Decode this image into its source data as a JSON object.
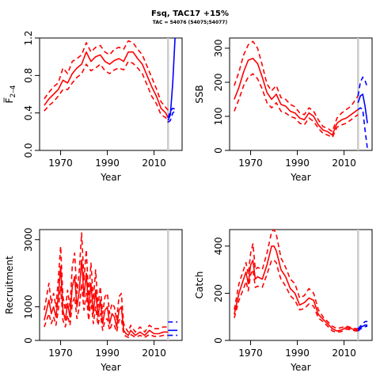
{
  "figure": {
    "title": "Fsq, TAC17 +15%",
    "subtitle": "TAC = 54076 (54075;54077)"
  },
  "chart_data": [
    {
      "id": "fbar",
      "type": "line",
      "xlabel": "Year",
      "ylabel": "F̅",
      "ylabel_sub": "2–4",
      "xlim": [
        1961,
        2022
      ],
      "ylim": [
        0,
        1.2
      ],
      "xticks": [
        1970,
        1990,
        2010
      ],
      "yticks": [
        0.0,
        0.4,
        0.8,
        1.2
      ],
      "ytick_labels": [
        "0.0",
        "0.4",
        "0.8",
        "1.2"
      ],
      "vline_year": 2016,
      "x": [
        1963,
        1965,
        1967,
        1969,
        1971,
        1973,
        1975,
        1977,
        1979,
        1981,
        1983,
        1985,
        1987,
        1989,
        1991,
        1993,
        1995,
        1997,
        1999,
        2001,
        2003,
        2005,
        2007,
        2009,
        2011,
        2013,
        2015,
        2016
      ],
      "series": [
        {
          "name": "estimate",
          "style": "solid",
          "color": "#ff0000",
          "values": [
            0.48,
            0.55,
            0.6,
            0.65,
            0.75,
            0.72,
            0.82,
            0.88,
            0.92,
            1.05,
            0.95,
            1.0,
            1.02,
            0.95,
            0.92,
            0.96,
            0.98,
            0.95,
            1.05,
            1.05,
            0.98,
            0.92,
            0.8,
            0.68,
            0.58,
            0.45,
            0.4,
            0.35
          ]
        },
        {
          "name": "upper",
          "style": "dashed",
          "color": "#ff0000",
          "values": [
            0.55,
            0.62,
            0.68,
            0.72,
            0.88,
            0.82,
            0.95,
            0.98,
            1.02,
            1.15,
            1.05,
            1.1,
            1.12,
            1.05,
            1.02,
            1.08,
            1.1,
            1.08,
            1.17,
            1.15,
            1.08,
            1.02,
            0.9,
            0.78,
            0.66,
            0.52,
            0.46,
            0.43
          ]
        },
        {
          "name": "lower",
          "style": "dashed",
          "color": "#ff0000",
          "values": [
            0.42,
            0.48,
            0.52,
            0.58,
            0.65,
            0.65,
            0.72,
            0.78,
            0.82,
            0.92,
            0.85,
            0.88,
            0.92,
            0.85,
            0.82,
            0.86,
            0.88,
            0.86,
            0.95,
            0.93,
            0.88,
            0.82,
            0.7,
            0.58,
            0.5,
            0.38,
            0.35,
            0.3
          ]
        }
      ],
      "forecast_x": [
        2016,
        2017,
        2018,
        2019
      ],
      "forecast": [
        {
          "name": "forecast",
          "style": "solid",
          "color": "#0000ff",
          "values": [
            0.32,
            0.38,
            0.72,
            1.2
          ]
        },
        {
          "name": "forecast-upper",
          "style": "dashed",
          "color": "#0000ff",
          "values": [
            0.35,
            0.42,
            0.45,
            0.44
          ]
        },
        {
          "name": "forecast-lower",
          "style": "dashed",
          "color": "#0000ff",
          "values": [
            0.3,
            0.32,
            0.4,
            0.42
          ]
        }
      ]
    },
    {
      "id": "ssb",
      "type": "line",
      "xlabel": "Year",
      "ylabel": "SSB",
      "xlim": [
        1961,
        2022
      ],
      "ylim": [
        0,
        330
      ],
      "xticks": [
        1970,
        1990,
        2010
      ],
      "yticks": [
        0,
        100,
        200,
        300
      ],
      "ytick_labels": [
        "0",
        "100",
        "200",
        "300"
      ],
      "vline_year": 2016,
      "x": [
        1963,
        1965,
        1967,
        1969,
        1971,
        1973,
        1975,
        1977,
        1979,
        1981,
        1983,
        1985,
        1987,
        1989,
        1991,
        1993,
        1995,
        1997,
        1999,
        2001,
        2003,
        2005,
        2007,
        2009,
        2011,
        2013,
        2015,
        2016
      ],
      "series": [
        {
          "name": "estimate",
          "style": "solid",
          "color": "#ff0000",
          "values": [
            150,
            185,
            230,
            265,
            270,
            255,
            215,
            170,
            150,
            165,
            135,
            130,
            115,
            110,
            95,
            90,
            110,
            100,
            75,
            60,
            55,
            45,
            80,
            90,
            95,
            105,
            115,
            120
          ]
        },
        {
          "name": "upper",
          "style": "dashed",
          "color": "#ff0000",
          "values": [
            190,
            230,
            280,
            310,
            320,
            300,
            250,
            195,
            175,
            190,
            155,
            150,
            135,
            128,
            110,
            105,
            125,
            115,
            90,
            70,
            65,
            55,
            95,
            110,
            120,
            130,
            150,
            160
          ]
        },
        {
          "name": "lower",
          "style": "dashed",
          "color": "#ff0000",
          "values": [
            115,
            150,
            190,
            215,
            225,
            210,
            180,
            140,
            125,
            140,
            115,
            110,
            100,
            95,
            80,
            75,
            95,
            85,
            65,
            50,
            45,
            38,
            68,
            75,
            80,
            90,
            100,
            105
          ]
        }
      ],
      "forecast_x": [
        2016,
        2017,
        2018,
        2019,
        2020
      ],
      "forecast": [
        {
          "name": "forecast",
          "style": "solid",
          "color": "#0000ff",
          "values": [
            140,
            160,
            165,
            130,
            80
          ]
        },
        {
          "name": "forecast-upper",
          "style": "dashed",
          "color": "#0000ff",
          "values": [
            160,
            200,
            215,
            205,
            185
          ]
        },
        {
          "name": "forecast-lower",
          "style": "dashed",
          "color": "#0000ff",
          "values": [
            120,
            125,
            120,
            60,
            5
          ]
        }
      ]
    },
    {
      "id": "recruitment",
      "type": "line",
      "xlabel": "Year",
      "ylabel": "Recruitment",
      "xlim": [
        1961,
        2022
      ],
      "ylim": [
        0,
        3300
      ],
      "xticks": [
        1970,
        1990,
        2010
      ],
      "yticks": [
        0,
        1000,
        3000
      ],
      "ytick_labels": [
        "0",
        "1000",
        "3000"
      ],
      "vline_year": 2016,
      "x": [
        1963,
        1964,
        1965,
        1966,
        1967,
        1968,
        1969,
        1970,
        1971,
        1972,
        1973,
        1974,
        1975,
        1976,
        1977,
        1978,
        1979,
        1980,
        1981,
        1982,
        1983,
        1984,
        1985,
        1986,
        1987,
        1988,
        1989,
        1990,
        1991,
        1992,
        1993,
        1994,
        1995,
        1996,
        1997,
        1998,
        1999,
        2000,
        2002,
        2004,
        2006,
        2008,
        2010,
        2012,
        2014,
        2016
      ],
      "series": [
        {
          "name": "estimate",
          "style": "solid",
          "color": "#ff0000",
          "values": [
            600,
            900,
            1200,
            800,
            1000,
            700,
            1300,
            2200,
            900,
            600,
            1100,
            700,
            1600,
            1900,
            1000,
            1500,
            2400,
            1300,
            2000,
            900,
            1700,
            800,
            1500,
            700,
            1200,
            500,
            900,
            1000,
            500,
            800,
            700,
            400,
            900,
            1000,
            300,
            200,
            150,
            300,
            150,
            250,
            150,
            300,
            200,
            200,
            250,
            250
          ]
        },
        {
          "name": "upper",
          "style": "dashed",
          "color": "#ff0000",
          "values": [
            900,
            1300,
            1700,
            1100,
            1400,
            1000,
            1800,
            2800,
            1300,
            900,
            1500,
            1000,
            2200,
            2600,
            1400,
            2100,
            3200,
            1800,
            2700,
            1300,
            2300,
            1200,
            2100,
            1000,
            1600,
            800,
            1300,
            1400,
            800,
            1100,
            1000,
            600,
            1300,
            1400,
            500,
            350,
            250,
            450,
            250,
            400,
            250,
            450,
            350,
            350,
            400,
            400
          ]
        },
        {
          "name": "lower",
          "style": "dashed",
          "color": "#ff0000",
          "values": [
            400,
            600,
            800,
            500,
            700,
            450,
            900,
            1600,
            600,
            400,
            750,
            450,
            1100,
            1300,
            650,
            1000,
            1700,
            900,
            1400,
            600,
            1200,
            500,
            1000,
            450,
            800,
            300,
            600,
            650,
            300,
            500,
            450,
            250,
            600,
            650,
            180,
            120,
            90,
            180,
            90,
            150,
            90,
            180,
            120,
            120,
            150,
            150
          ]
        }
      ],
      "forecast_x": [
        2016,
        2017,
        2018,
        2019,
        2020
      ],
      "forecast": [
        {
          "name": "forecast",
          "style": "solid",
          "color": "#0000ff",
          "values": [
            300,
            300,
            300,
            300,
            300
          ]
        },
        {
          "name": "forecast-upper",
          "style": "dashed",
          "color": "#0000ff",
          "values": [
            550,
            550,
            550,
            550,
            550
          ]
        },
        {
          "name": "forecast-lower",
          "style": "dashed",
          "color": "#0000ff",
          "values": [
            150,
            150,
            150,
            150,
            150
          ]
        }
      ]
    },
    {
      "id": "catch",
      "type": "line",
      "xlabel": "Year",
      "ylabel": "Catch",
      "xlim": [
        1961,
        2022
      ],
      "ylim": [
        0,
        470
      ],
      "xticks": [
        1970,
        1990,
        2010
      ],
      "yticks": [
        0,
        200,
        400
      ],
      "ytick_labels": [
        "0",
        "200",
        "400"
      ],
      "vline_year": 2016,
      "x": [
        1963,
        1965,
        1967,
        1968,
        1969,
        1970,
        1971,
        1972,
        1973,
        1975,
        1977,
        1979,
        1980,
        1981,
        1982,
        1983,
        1985,
        1987,
        1989,
        1991,
        1993,
        1995,
        1997,
        1999,
        2001,
        2003,
        2005,
        2007,
        2009,
        2011,
        2013,
        2015,
        2016
      ],
      "series": [
        {
          "name": "estimate",
          "style": "solid",
          "color": "#ff0000",
          "values": [
            110,
            200,
            260,
            290,
            240,
            320,
            340,
            260,
            270,
            260,
            320,
            400,
            400,
            380,
            340,
            300,
            270,
            220,
            200,
            150,
            160,
            180,
            170,
            110,
            90,
            70,
            50,
            40,
            45,
            55,
            50,
            45,
            45
          ]
        },
        {
          "name": "upper",
          "style": "dashed",
          "color": "#ff0000",
          "values": [
            130,
            240,
            300,
            330,
            280,
            370,
            410,
            300,
            310,
            300,
            370,
            460,
            470,
            450,
            400,
            350,
            310,
            260,
            240,
            180,
            190,
            220,
            200,
            130,
            100,
            80,
            60,
            50,
            55,
            60,
            55,
            50,
            50
          ]
        },
        {
          "name": "lower",
          "style": "dashed",
          "color": "#ff0000",
          "values": [
            95,
            170,
            220,
            250,
            210,
            280,
            300,
            225,
            230,
            225,
            280,
            340,
            340,
            330,
            290,
            260,
            230,
            190,
            170,
            130,
            135,
            155,
            145,
            95,
            80,
            60,
            40,
            35,
            38,
            48,
            45,
            40,
            40
          ]
        }
      ],
      "forecast_x": [
        2016,
        2017,
        2018,
        2019,
        2020
      ],
      "forecast": [
        {
          "name": "forecast",
          "style": "solid",
          "color": "#0000ff",
          "values": [
            45,
            55,
            60,
            65,
            65
          ]
        },
        {
          "name": "forecast-upper",
          "style": "dashed",
          "color": "#0000ff",
          "values": [
            50,
            60,
            70,
            80,
            80
          ]
        },
        {
          "name": "forecast-lower",
          "style": "dashed",
          "color": "#0000ff",
          "values": [
            40,
            48,
            55,
            58,
            60
          ]
        }
      ]
    }
  ]
}
